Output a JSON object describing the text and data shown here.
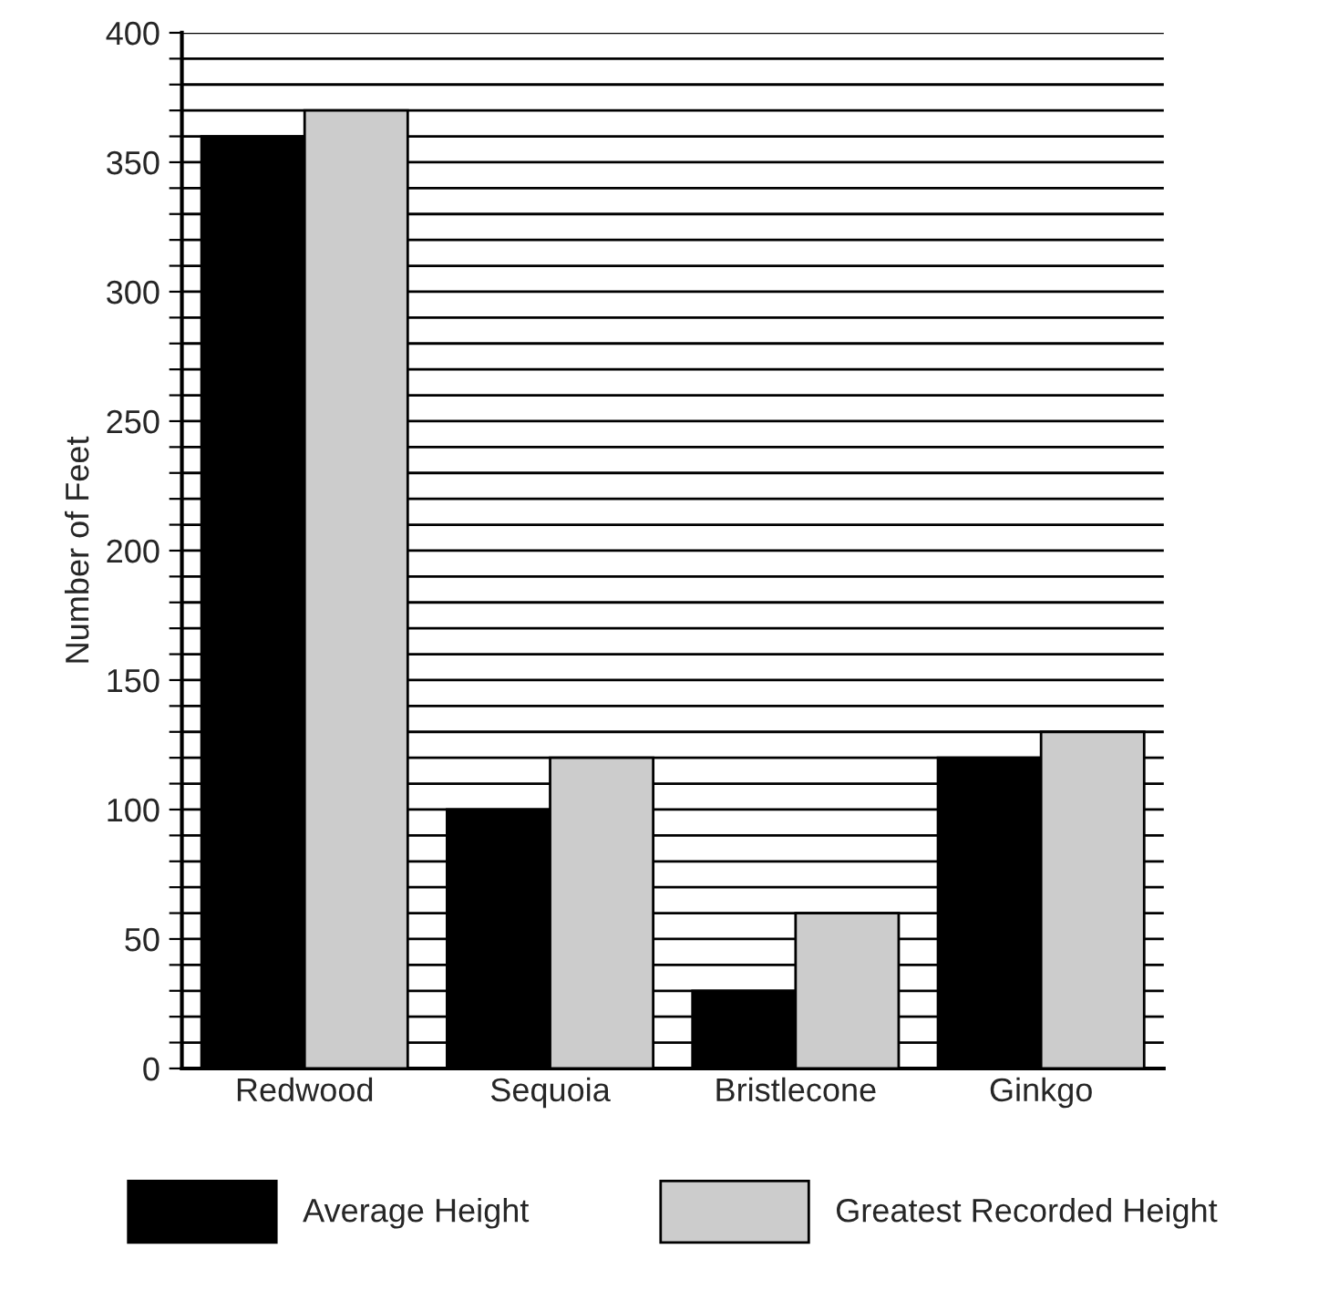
{
  "chart_data": {
    "type": "bar",
    "ylabel": "Number of Feet",
    "categories": [
      "Redwood",
      "Sequoia",
      "Bristlecone",
      "Ginkgo"
    ],
    "series": [
      {
        "name": "Average Height",
        "color": "#000000",
        "values": [
          360,
          100,
          30,
          120
        ]
      },
      {
        "name": "Greatest Recorded Height",
        "color": "#cccccc",
        "values": [
          370,
          120,
          60,
          130
        ]
      }
    ],
    "ylim": [
      0,
      400
    ],
    "yticks": [
      0,
      {
        "value": 10,
        "label": null
      },
      {
        "value": 20,
        "label": null
      },
      {
        "value": 30,
        "label": null
      },
      {
        "value": 40,
        "label": null
      },
      50,
      {
        "value": 60,
        "label": null
      },
      {
        "value": 70,
        "label": null
      },
      {
        "value": 80,
        "label": null
      },
      {
        "value": 90,
        "label": null
      },
      100,
      {
        "value": 110,
        "label": null
      },
      {
        "value": 120,
        "label": null
      },
      {
        "value": 130,
        "label": null
      },
      {
        "value": 140,
        "label": null
      },
      150,
      {
        "value": 160,
        "label": null
      },
      {
        "value": 170,
        "label": null
      },
      {
        "value": 180,
        "label": null
      },
      {
        "value": 190,
        "label": null
      },
      200,
      {
        "value": 210,
        "label": null
      },
      {
        "value": 220,
        "label": null
      },
      {
        "value": 230,
        "label": null
      },
      {
        "value": 240,
        "label": null
      },
      250,
      {
        "value": 260,
        "label": null
      },
      {
        "value": 270,
        "label": null
      },
      {
        "value": 280,
        "label": null
      },
      {
        "value": 290,
        "label": null
      },
      300,
      {
        "value": 310,
        "label": null
      },
      {
        "value": 320,
        "label": null
      },
      {
        "value": 330,
        "label": null
      },
      {
        "value": 340,
        "label": null
      },
      350,
      {
        "value": 360,
        "label": null
      },
      {
        "value": 370,
        "label": null
      },
      {
        "value": 380,
        "label": null
      },
      {
        "value": 390,
        "label": null
      },
      400
    ],
    "grid": "y",
    "legend": "bottom"
  }
}
